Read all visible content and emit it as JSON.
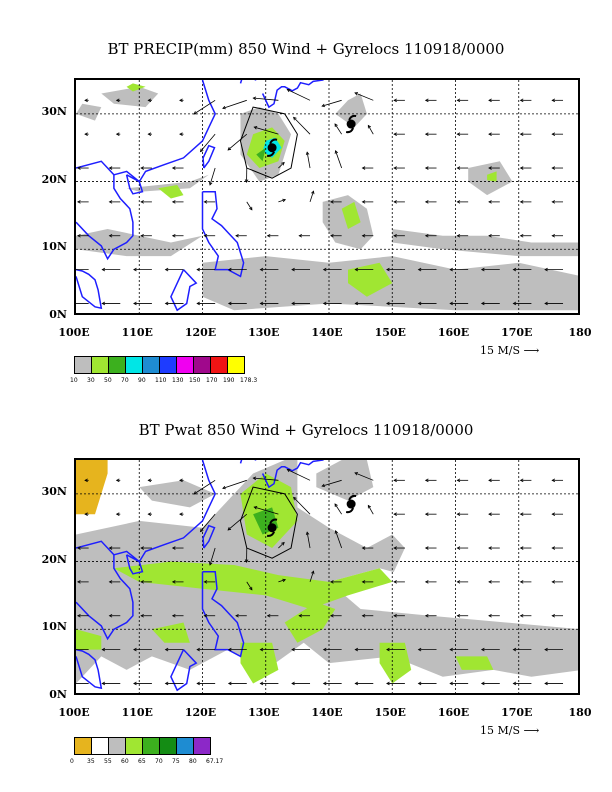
{
  "panels": [
    {
      "title": "BT PRECIP(mm) 850 Wind + Gyrelocs 110918/0000",
      "fill": "precip",
      "legend_labels": [
        "10",
        "30",
        "50",
        "70",
        "90",
        "110",
        "130",
        "150",
        "170",
        "190",
        "178.3"
      ],
      "legend_colors": [
        "#bebebe",
        "#a0e632",
        "#3cb01e",
        "#00e6e6",
        "#1e8cd2",
        "#1e3cff",
        "#f000f0",
        "#a0088c",
        "#f01414",
        "#ffff00"
      ]
    },
    {
      "title": "BT Pwat 850 Wind + Gyrelocs 110918/0000",
      "fill": "pwat",
      "legend_labels": [
        "0",
        "35",
        "55",
        "60",
        "65",
        "70",
        "75",
        "80",
        "67.17"
      ],
      "legend_colors": [
        "#e6b41e",
        "#ffffff",
        "#bebebe",
        "#a0e632",
        "#3cb01e",
        "#148c14",
        "#1e8cd2",
        "#8c28c8"
      ]
    }
  ],
  "x_ticks": [
    "100E",
    "110E",
    "120E",
    "130E",
    "140E",
    "150E",
    "160E",
    "170E",
    "180"
  ],
  "y_ticks": [
    "30N",
    "20N",
    "10N",
    "0N"
  ],
  "ref_vector": "15 M/S",
  "colors": {
    "coast": "#1e1eff",
    "fill_gray": "#bebebe",
    "fill_green": "#a0e632",
    "fill_dkgreen": "#3cb01e"
  }
}
